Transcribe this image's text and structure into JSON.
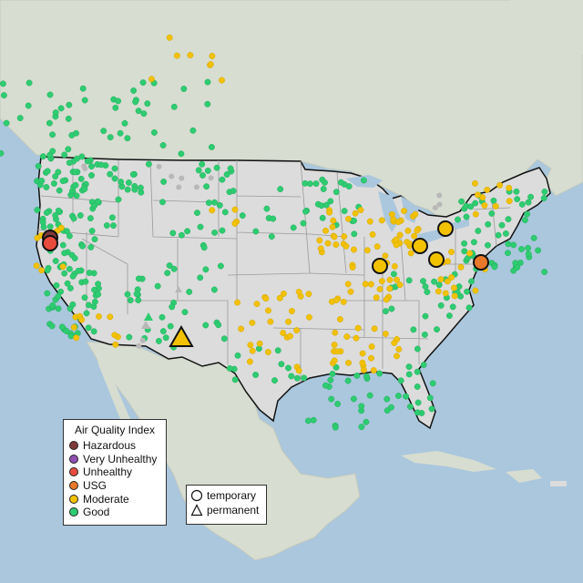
{
  "legend_aqi": {
    "title": "Air Quality Index",
    "items": [
      {
        "label": "Hazardous",
        "color": "#7e3a3a"
      },
      {
        "label": "Very Unhealthy",
        "color": "#8f4fb3"
      },
      {
        "label": "Unhealthy",
        "color": "#e84c3d"
      },
      {
        "label": "USG",
        "color": "#e8782a"
      },
      {
        "label": "Moderate",
        "color": "#f2c200"
      },
      {
        "label": "Good",
        "color": "#2ecc71"
      }
    ]
  },
  "legend_shape": {
    "items": [
      {
        "label": "temporary",
        "shape": "circle-icon"
      },
      {
        "label": "permanent",
        "shape": "triangle-icon"
      }
    ]
  },
  "colors": {
    "water": "#aac7dd",
    "land_us": "#dcdcdc",
    "land_other": "#d7ddd0",
    "good": "#2ecc71",
    "moderate": "#f2c200",
    "usg": "#e8782a",
    "unhealthy": "#e84c3d",
    "hazardous": "#7e3a3a",
    "nodata": "#b8b8b8"
  },
  "highlight_monitors": [
    {
      "category": "hazardous",
      "shape": "circle"
    },
    {
      "category": "unhealthy",
      "shape": "circle"
    },
    {
      "category": "moderate",
      "shape": "circle"
    },
    {
      "category": "moderate",
      "shape": "circle"
    },
    {
      "category": "moderate",
      "shape": "circle"
    },
    {
      "category": "moderate",
      "shape": "circle"
    },
    {
      "category": "usg",
      "shape": "circle"
    },
    {
      "category": "moderate",
      "shape": "triangle"
    }
  ]
}
